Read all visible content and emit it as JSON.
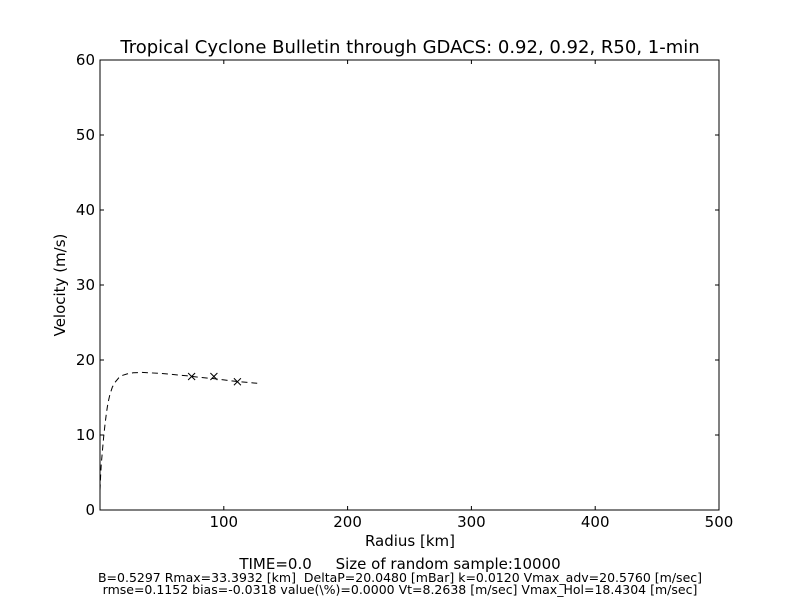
{
  "chart_data": {
    "type": "line",
    "title": "Tropical Cyclone Bulletin through GDACS: 0.92, 0.92, R50, 1-min",
    "xlabel": "Radius [km]",
    "ylabel": "Velocity (m/s)",
    "xlim": [
      0,
      500
    ],
    "ylim": [
      0,
      60
    ],
    "xticks": [
      {
        "value": 0,
        "label": ""
      },
      {
        "value": 100,
        "label": "100"
      },
      {
        "value": 200,
        "label": "200"
      },
      {
        "value": 300,
        "label": "300"
      },
      {
        "value": 400,
        "label": "400"
      },
      {
        "value": 500,
        "label": "500"
      }
    ],
    "yticks": [
      {
        "value": 0,
        "label": "0"
      },
      {
        "value": 10,
        "label": "10"
      },
      {
        "value": 20,
        "label": "20"
      },
      {
        "value": 30,
        "label": "30"
      },
      {
        "value": 40,
        "label": "40"
      },
      {
        "value": 50,
        "label": "50"
      },
      {
        "value": 60,
        "label": "60"
      }
    ],
    "grid": false,
    "series": [
      {
        "style": "dashed-line",
        "color": "#000000",
        "x": [
          0,
          0.5,
          1,
          2,
          3,
          4,
          5,
          6,
          7,
          8,
          10,
          12,
          15,
          18,
          22,
          27,
          33.4,
          40,
          50,
          60,
          70,
          80,
          90,
          100,
          110,
          120,
          127
        ],
        "y": [
          2.6,
          4.5,
          6.0,
          8.0,
          9.8,
          11.4,
          12.7,
          13.8,
          14.7,
          15.4,
          16.4,
          17.0,
          17.6,
          17.95,
          18.15,
          18.3,
          18.35,
          18.3,
          18.2,
          18.05,
          17.9,
          17.7,
          17.55,
          17.35,
          17.15,
          17.0,
          16.9
        ]
      },
      {
        "style": "x-markers",
        "color": "#000000",
        "x": [
          74,
          92,
          111
        ],
        "y": [
          17.8,
          17.8,
          17.1
        ]
      }
    ]
  },
  "footer": {
    "main": "TIME=0.0     Size of random sample:10000",
    "line1": "B=0.5297 Rmax=33.3932 [km]  DeltaP=20.0480 [mBar] k=0.0120 Vmax_adv=20.5760 [m/sec]",
    "line2": "rmse=0.1152 bias=-0.0318 value(\\%)=0.0000 Vt=8.2638 [m/sec] Vmax_Hol=18.4304 [m/sec]"
  }
}
